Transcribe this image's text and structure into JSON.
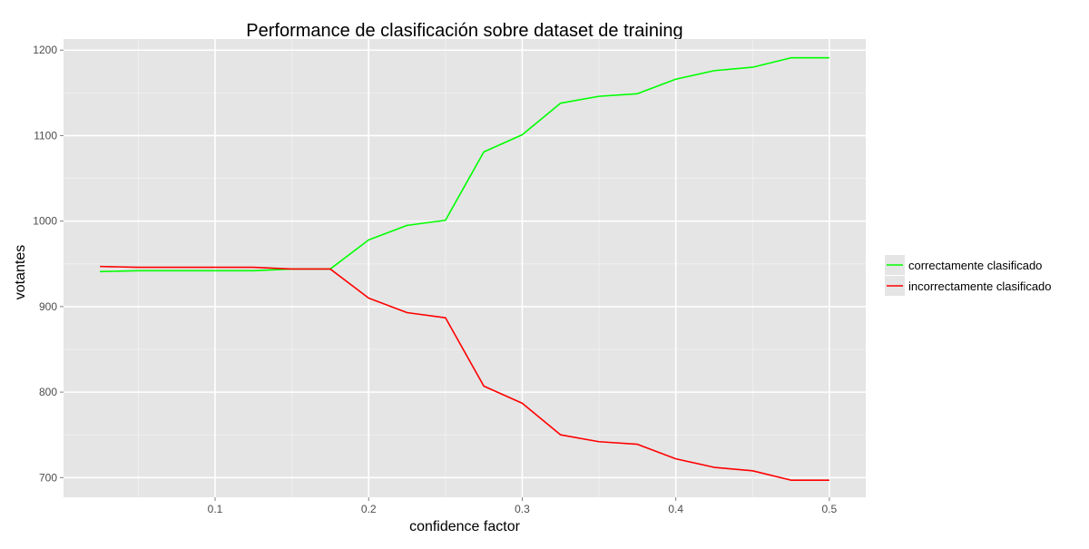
{
  "chart_data": {
    "type": "line",
    "title": "Performance de clasificación sobre dataset de training",
    "xlabel": "confidence factor",
    "ylabel": "votantes",
    "xlim": [
      0.0013,
      0.5237
    ],
    "ylim": [
      677,
      1213
    ],
    "x_ticks": [
      0.1,
      0.2,
      0.3,
      0.4,
      0.5
    ],
    "x_tick_labels": [
      "0.1",
      "0.2",
      "0.3",
      "0.4",
      "0.5"
    ],
    "y_ticks": [
      700,
      800,
      900,
      1000,
      1100,
      1200
    ],
    "y_tick_labels": [
      "700",
      "800",
      "900",
      "1000",
      "1100",
      "1200"
    ],
    "x_minor_ticks": [
      0.05,
      0.15,
      0.25,
      0.35,
      0.45
    ],
    "y_minor_ticks": [
      750,
      850,
      950,
      1050,
      1150
    ],
    "grid": true,
    "background": "#e5e5e5",
    "legend_position": "right",
    "x": [
      0.025,
      0.05,
      0.075,
      0.1,
      0.125,
      0.15,
      0.175,
      0.2,
      0.225,
      0.25,
      0.275,
      0.3,
      0.325,
      0.35,
      0.375,
      0.4,
      0.425,
      0.45,
      0.475,
      0.5
    ],
    "series": [
      {
        "name": "correctamente clasificado",
        "color": "#00ff00",
        "values": [
          941,
          942,
          942,
          942,
          942,
          944,
          944,
          978,
          995,
          1001,
          1081,
          1101,
          1138,
          1146,
          1149,
          1166,
          1176,
          1180,
          1191,
          1191
        ]
      },
      {
        "name": "incorrectamente clasificado",
        "color": "#ff0000",
        "values": [
          947,
          946,
          946,
          946,
          946,
          944,
          944,
          910,
          893,
          887,
          807,
          787,
          750,
          742,
          739,
          722,
          712,
          708,
          697,
          697
        ]
      }
    ]
  }
}
